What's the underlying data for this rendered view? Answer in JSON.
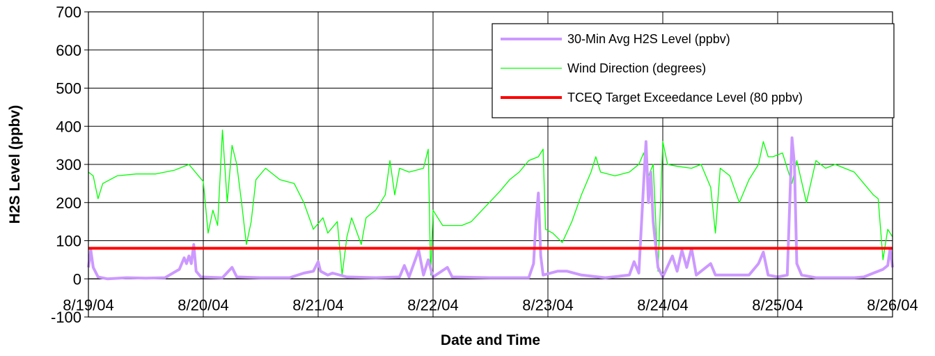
{
  "chart_data": {
    "type": "line",
    "title": "",
    "xlabel": "Date and Time",
    "ylabel": "H2S Level (ppbv)",
    "ylim": [
      -100,
      700
    ],
    "xlim": [
      "2004-08-19",
      "2004-08-26"
    ],
    "grid": true,
    "legend_position": "top-right",
    "y_ticks": [
      {
        "value": 700,
        "label": "700"
      },
      {
        "value": 600,
        "label": "600"
      },
      {
        "value": 500,
        "label": "500"
      },
      {
        "value": 400,
        "label": "400"
      },
      {
        "value": 300,
        "label": "300"
      },
      {
        "value": 200,
        "label": "200"
      },
      {
        "value": 100,
        "label": "100"
      },
      {
        "value": 0,
        "label": "0"
      },
      {
        "value": -100,
        "label": "-100"
      }
    ],
    "x_ticks": [
      {
        "value": "2004-08-19",
        "label": "8/19/04"
      },
      {
        "value": "2004-08-20",
        "label": "8/20/04"
      },
      {
        "value": "2004-08-21",
        "label": "8/21/04"
      },
      {
        "value": "2004-08-22",
        "label": "8/22/04"
      },
      {
        "value": "2004-08-23",
        "label": "8/23/04"
      },
      {
        "value": "2004-08-24",
        "label": "8/24/04"
      },
      {
        "value": "2004-08-25",
        "label": "8/25/04"
      },
      {
        "value": "2004-08-26",
        "label": "8/26/04"
      }
    ],
    "series": [
      {
        "name": "30-Min Avg H2S Level (ppbv)",
        "color": "#cc99ff",
        "line": "thick",
        "points": [
          [
            "2004-08-19 00:00",
            30
          ],
          [
            "2004-08-19 00:30",
            75
          ],
          [
            "2004-08-19 01:00",
            30
          ],
          [
            "2004-08-19 02:00",
            5
          ],
          [
            "2004-08-19 04:00",
            0
          ],
          [
            "2004-08-19 08:00",
            3
          ],
          [
            "2004-08-19 12:00",
            2
          ],
          [
            "2004-08-19 16:00",
            3
          ],
          [
            "2004-08-19 19:00",
            25
          ],
          [
            "2004-08-19 20:00",
            55
          ],
          [
            "2004-08-19 20:30",
            40
          ],
          [
            "2004-08-19 21:00",
            60
          ],
          [
            "2004-08-19 21:30",
            40
          ],
          [
            "2004-08-19 22:00",
            90
          ],
          [
            "2004-08-19 22:30",
            20
          ],
          [
            "2004-08-19 23:30",
            5
          ],
          [
            "2004-08-20 04:00",
            3
          ],
          [
            "2004-08-20 06:00",
            30
          ],
          [
            "2004-08-20 07:00",
            5
          ],
          [
            "2004-08-20 12:00",
            3
          ],
          [
            "2004-08-20 18:00",
            3
          ],
          [
            "2004-08-20 21:00",
            15
          ],
          [
            "2004-08-20 23:00",
            20
          ],
          [
            "2004-08-21 00:00",
            45
          ],
          [
            "2004-08-21 00:30",
            20
          ],
          [
            "2004-08-21 02:00",
            10
          ],
          [
            "2004-08-21 03:00",
            15
          ],
          [
            "2004-08-21 06:00",
            5
          ],
          [
            "2004-08-21 12:00",
            3
          ],
          [
            "2004-08-21 17:00",
            5
          ],
          [
            "2004-08-21 18:00",
            35
          ],
          [
            "2004-08-21 19:00",
            5
          ],
          [
            "2004-08-21 21:00",
            75
          ],
          [
            "2004-08-21 22:00",
            10
          ],
          [
            "2004-08-21 23:00",
            50
          ],
          [
            "2004-08-22 00:00",
            5
          ],
          [
            "2004-08-22 03:00",
            30
          ],
          [
            "2004-08-22 04:00",
            5
          ],
          [
            "2004-08-22 12:00",
            3
          ],
          [
            "2004-08-22 20:00",
            3
          ],
          [
            "2004-08-22 21:00",
            40
          ],
          [
            "2004-08-22 21:30",
            150
          ],
          [
            "2004-08-22 22:00",
            225
          ],
          [
            "2004-08-22 22:30",
            60
          ],
          [
            "2004-08-22 23:00",
            10
          ],
          [
            "2004-08-23 02:00",
            20
          ],
          [
            "2004-08-23 04:00",
            20
          ],
          [
            "2004-08-23 07:00",
            10
          ],
          [
            "2004-08-23 12:00",
            3
          ],
          [
            "2004-08-23 17:00",
            10
          ],
          [
            "2004-08-23 18:00",
            45
          ],
          [
            "2004-08-23 19:00",
            15
          ],
          [
            "2004-08-23 20:00",
            250
          ],
          [
            "2004-08-23 20:30",
            360
          ],
          [
            "2004-08-23 21:00",
            200
          ],
          [
            "2004-08-23 21:30",
            280
          ],
          [
            "2004-08-23 22:00",
            150
          ],
          [
            "2004-08-23 23:00",
            30
          ],
          [
            "2004-08-24 00:00",
            5
          ],
          [
            "2004-08-24 02:00",
            60
          ],
          [
            "2004-08-24 03:00",
            20
          ],
          [
            "2004-08-24 04:00",
            75
          ],
          [
            "2004-08-24 05:00",
            30
          ],
          [
            "2004-08-24 06:00",
            80
          ],
          [
            "2004-08-24 07:00",
            10
          ],
          [
            "2004-08-24 10:00",
            40
          ],
          [
            "2004-08-24 11:00",
            10
          ],
          [
            "2004-08-24 14:00",
            10
          ],
          [
            "2004-08-24 18:00",
            10
          ],
          [
            "2004-08-24 20:00",
            40
          ],
          [
            "2004-08-24 21:00",
            70
          ],
          [
            "2004-08-24 22:00",
            10
          ],
          [
            "2004-08-25 00:00",
            5
          ],
          [
            "2004-08-25 02:00",
            10
          ],
          [
            "2004-08-25 03:00",
            370
          ],
          [
            "2004-08-25 03:30",
            300
          ],
          [
            "2004-08-25 04:00",
            40
          ],
          [
            "2004-08-25 05:00",
            10
          ],
          [
            "2004-08-25 08:00",
            3
          ],
          [
            "2004-08-25 16:00",
            3
          ],
          [
            "2004-08-25 18:00",
            5
          ],
          [
            "2004-08-25 20:00",
            15
          ],
          [
            "2004-08-25 22:00",
            25
          ],
          [
            "2004-08-25 23:00",
            35
          ],
          [
            "2004-08-25 23:30",
            80
          ],
          [
            "2004-08-26 00:00",
            30
          ]
        ]
      },
      {
        "name": "Wind Direction (degrees)",
        "color": "#00ff00",
        "line": "thin",
        "points": [
          [
            "2004-08-19 00:00",
            280
          ],
          [
            "2004-08-19 01:00",
            270
          ],
          [
            "2004-08-19 02:00",
            210
          ],
          [
            "2004-08-19 03:00",
            250
          ],
          [
            "2004-08-19 06:00",
            270
          ],
          [
            "2004-08-19 10:00",
            275
          ],
          [
            "2004-08-19 14:00",
            275
          ],
          [
            "2004-08-19 18:00",
            285
          ],
          [
            "2004-08-19 21:00",
            300
          ],
          [
            "2004-08-19 23:00",
            270
          ],
          [
            "2004-08-20 00:00",
            255
          ],
          [
            "2004-08-20 01:00",
            120
          ],
          [
            "2004-08-20 02:00",
            180
          ],
          [
            "2004-08-20 03:00",
            140
          ],
          [
            "2004-08-20 04:00",
            390
          ],
          [
            "2004-08-20 05:00",
            200
          ],
          [
            "2004-08-20 06:00",
            350
          ],
          [
            "2004-08-20 07:00",
            300
          ],
          [
            "2004-08-20 08:00",
            200
          ],
          [
            "2004-08-20 09:00",
            90
          ],
          [
            "2004-08-20 10:00",
            150
          ],
          [
            "2004-08-20 11:00",
            260
          ],
          [
            "2004-08-20 13:00",
            290
          ],
          [
            "2004-08-20 16:00",
            260
          ],
          [
            "2004-08-20 19:00",
            250
          ],
          [
            "2004-08-20 21:00",
            200
          ],
          [
            "2004-08-20 23:00",
            130
          ],
          [
            "2004-08-21 01:00",
            160
          ],
          [
            "2004-08-21 02:00",
            120
          ],
          [
            "2004-08-21 04:00",
            150
          ],
          [
            "2004-08-21 05:00",
            10
          ],
          [
            "2004-08-21 06:00",
            110
          ],
          [
            "2004-08-21 07:00",
            160
          ],
          [
            "2004-08-21 09:00",
            90
          ],
          [
            "2004-08-21 10:00",
            160
          ],
          [
            "2004-08-21 12:00",
            180
          ],
          [
            "2004-08-21 14:00",
            220
          ],
          [
            "2004-08-21 15:00",
            310
          ],
          [
            "2004-08-21 16:00",
            220
          ],
          [
            "2004-08-21 17:00",
            290
          ],
          [
            "2004-08-21 19:00",
            280
          ],
          [
            "2004-08-21 22:00",
            290
          ],
          [
            "2004-08-21 23:00",
            340
          ],
          [
            "2004-08-21 23:30",
            10
          ],
          [
            "2004-08-22 00:00",
            180
          ],
          [
            "2004-08-22 02:00",
            140
          ],
          [
            "2004-08-22 06:00",
            140
          ],
          [
            "2004-08-22 08:00",
            150
          ],
          [
            "2004-08-22 11:00",
            190
          ],
          [
            "2004-08-22 14:00",
            230
          ],
          [
            "2004-08-22 16:00",
            260
          ],
          [
            "2004-08-22 18:00",
            280
          ],
          [
            "2004-08-22 20:00",
            310
          ],
          [
            "2004-08-22 22:00",
            320
          ],
          [
            "2004-08-22 23:00",
            340
          ],
          [
            "2004-08-22 23:30",
            130
          ],
          [
            "2004-08-23 01:00",
            120
          ],
          [
            "2004-08-23 03:00",
            95
          ],
          [
            "2004-08-23 05:00",
            150
          ],
          [
            "2004-08-23 07:00",
            220
          ],
          [
            "2004-08-23 09:00",
            280
          ],
          [
            "2004-08-23 10:00",
            320
          ],
          [
            "2004-08-23 11:00",
            280
          ],
          [
            "2004-08-23 14:00",
            270
          ],
          [
            "2004-08-23 17:00",
            280
          ],
          [
            "2004-08-23 19:00",
            300
          ],
          [
            "2004-08-23 20:00",
            330
          ],
          [
            "2004-08-23 21:00",
            270
          ],
          [
            "2004-08-23 22:00",
            300
          ],
          [
            "2004-08-23 23:00",
            20
          ],
          [
            "2004-08-24 00:00",
            360
          ],
          [
            "2004-08-24 01:00",
            300
          ],
          [
            "2004-08-24 03:00",
            295
          ],
          [
            "2004-08-24 06:00",
            290
          ],
          [
            "2004-08-24 08:00",
            300
          ],
          [
            "2004-08-24 10:00",
            240
          ],
          [
            "2004-08-24 11:00",
            120
          ],
          [
            "2004-08-24 12:00",
            290
          ],
          [
            "2004-08-24 14:00",
            270
          ],
          [
            "2004-08-24 16:00",
            200
          ],
          [
            "2004-08-24 18:00",
            260
          ],
          [
            "2004-08-24 20:00",
            300
          ],
          [
            "2004-08-24 21:00",
            360
          ],
          [
            "2004-08-24 22:00",
            320
          ],
          [
            "2004-08-24 23:00",
            320
          ],
          [
            "2004-08-25 01:00",
            330
          ],
          [
            "2004-08-25 03:00",
            250
          ],
          [
            "2004-08-25 04:00",
            310
          ],
          [
            "2004-08-25 06:00",
            200
          ],
          [
            "2004-08-25 08:00",
            310
          ],
          [
            "2004-08-25 10:00",
            290
          ],
          [
            "2004-08-25 12:00",
            300
          ],
          [
            "2004-08-25 14:00",
            290
          ],
          [
            "2004-08-25 16:00",
            280
          ],
          [
            "2004-08-25 18:00",
            250
          ],
          [
            "2004-08-25 20:00",
            220
          ],
          [
            "2004-08-25 21:00",
            210
          ],
          [
            "2004-08-25 22:00",
            50
          ],
          [
            "2004-08-25 23:00",
            130
          ],
          [
            "2004-08-26 00:00",
            110
          ]
        ]
      },
      {
        "name": "TCEQ Target Exceedance Level (80 ppbv)",
        "color": "#ff0000",
        "line": "thick",
        "points": [
          [
            "2004-08-19 00:00",
            80
          ],
          [
            "2004-08-26 00:00",
            80
          ]
        ]
      }
    ]
  }
}
